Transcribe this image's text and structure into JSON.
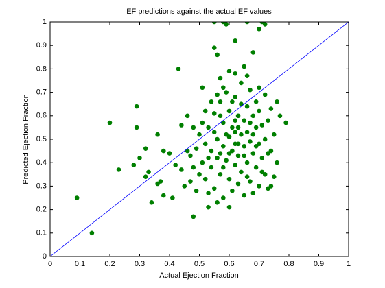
{
  "chart_data": {
    "type": "scatter",
    "title": "EF predictions against the actual EF values",
    "xlabel": "Actual Ejection Fraction",
    "ylabel": "Predicted Ejection Fraction",
    "xlim": [
      0,
      1
    ],
    "ylim": [
      0,
      1
    ],
    "xticks": [
      0,
      0.1,
      0.2,
      0.3,
      0.4,
      0.5,
      0.6,
      0.7,
      0.8,
      0.9,
      1
    ],
    "yticks": [
      0,
      0.1,
      0.2,
      0.3,
      0.4,
      0.5,
      0.6,
      0.7,
      0.8,
      0.9,
      1
    ],
    "series": [
      {
        "type": "scatter",
        "color": "#007f00",
        "x": [
          0.09,
          0.14,
          0.2,
          0.23,
          0.28,
          0.29,
          0.29,
          0.3,
          0.32,
          0.32,
          0.33,
          0.34,
          0.36,
          0.36,
          0.37,
          0.38,
          0.38,
          0.4,
          0.41,
          0.42,
          0.43,
          0.44,
          0.44,
          0.45,
          0.46,
          0.47,
          0.48,
          0.48,
          0.49,
          0.5,
          0.51,
          0.52,
          0.52,
          0.53,
          0.54,
          0.55,
          0.55,
          0.56,
          0.57,
          0.58,
          0.59,
          0.6,
          0.62,
          0.63,
          0.65,
          0.66,
          0.68,
          0.7,
          0.71,
          0.72,
          0.76,
          0.79,
          0.77,
          0.75,
          0.73,
          0.52,
          0.53,
          0.54,
          0.55,
          0.55,
          0.56,
          0.56,
          0.57,
          0.57,
          0.58,
          0.58,
          0.58,
          0.59,
          0.59,
          0.6,
          0.6,
          0.6,
          0.61,
          0.61,
          0.61,
          0.62,
          0.62,
          0.62,
          0.63,
          0.63,
          0.63,
          0.64,
          0.64,
          0.64,
          0.65,
          0.65,
          0.65,
          0.66,
          0.66,
          0.66,
          0.67,
          0.67,
          0.67,
          0.68,
          0.68,
          0.68,
          0.69,
          0.69,
          0.69,
          0.7,
          0.7,
          0.7,
          0.71,
          0.71,
          0.72,
          0.72,
          0.72,
          0.73,
          0.73,
          0.74,
          0.74,
          0.75,
          0.76,
          0.51,
          0.51,
          0.5,
          0.49,
          0.48,
          0.47,
          0.46,
          0.53,
          0.54,
          0.56,
          0.57,
          0.59,
          0.6,
          0.62,
          0.64,
          0.66,
          0.68,
          0.7,
          0.61,
          0.63,
          0.58,
          0.55,
          0.65,
          0.67,
          0.69,
          0.71,
          0.6,
          0.62,
          0.57,
          0.53,
          0.74,
          0.66,
          0.62,
          0.58,
          0.56
        ],
        "values": [
          0.25,
          0.1,
          0.57,
          0.37,
          0.39,
          0.55,
          0.64,
          0.42,
          0.46,
          0.34,
          0.36,
          0.23,
          0.31,
          0.52,
          0.32,
          0.45,
          0.26,
          0.44,
          0.25,
          0.39,
          0.8,
          0.56,
          0.37,
          0.3,
          0.45,
          0.43,
          0.17,
          0.38,
          0.28,
          0.52,
          0.72,
          0.62,
          0.33,
          0.21,
          0.45,
          1.0,
          0.89,
          0.86,
          0.76,
          1.0,
          0.99,
          0.79,
          0.92,
          0.55,
          0.81,
          1.0,
          0.87,
          0.97,
          1.0,
          0.99,
          0.66,
          0.57,
          0.6,
          0.34,
          0.44,
          0.48,
          0.55,
          0.38,
          0.29,
          0.61,
          0.5,
          0.42,
          0.35,
          0.66,
          0.47,
          0.25,
          0.57,
          0.41,
          0.7,
          0.51,
          0.33,
          0.62,
          0.45,
          0.28,
          0.55,
          0.39,
          0.68,
          0.48,
          0.31,
          0.6,
          0.43,
          0.52,
          0.36,
          0.74,
          0.47,
          0.26,
          0.58,
          0.4,
          0.64,
          0.53,
          0.32,
          0.49,
          0.71,
          0.44,
          0.6,
          0.27,
          0.55,
          0.38,
          0.66,
          0.48,
          0.3,
          0.62,
          0.42,
          0.56,
          0.35,
          0.69,
          0.5,
          0.58,
          0.29,
          0.45,
          0.63,
          0.52,
          0.4,
          0.4,
          0.57,
          0.35,
          0.46,
          0.55,
          0.32,
          0.6,
          0.27,
          0.66,
          0.23,
          0.44,
          0.52,
          0.21,
          0.58,
          0.65,
          0.34,
          0.52,
          0.72,
          0.66,
          0.48,
          0.38,
          0.53,
          0.43,
          0.57,
          0.47,
          0.36,
          0.44,
          0.53,
          0.6,
          0.42,
          0.3,
          0.77,
          0.78,
          0.72,
          0.69
        ]
      },
      {
        "type": "line",
        "color": "#0000ff",
        "x": [
          0,
          1
        ],
        "values": [
          0,
          1
        ]
      }
    ]
  }
}
